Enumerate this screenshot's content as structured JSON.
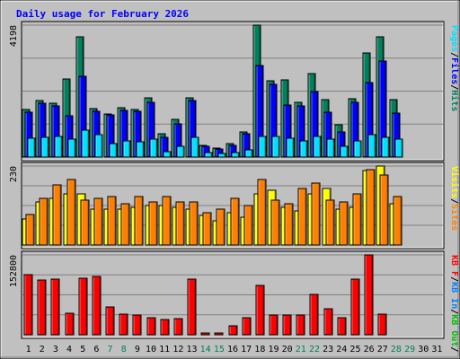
{
  "chart_data": {
    "type": "bar",
    "title": "Daily usage for February 2026",
    "days": [
      "1",
      "2",
      "3",
      "4",
      "5",
      "6",
      "7",
      "8",
      "9",
      "10",
      "11",
      "12",
      "13",
      "14",
      "15",
      "16",
      "17",
      "18",
      "19",
      "20",
      "21",
      "22",
      "23",
      "24",
      "25",
      "26",
      "27",
      "28",
      "29",
      "30",
      "31"
    ],
    "weekend_days": [
      "7",
      "8",
      "14",
      "15",
      "21",
      "22",
      "28",
      "29"
    ],
    "colors": {
      "background": "#c0c0c0",
      "title": "#0000ff",
      "hits": "#00805c",
      "files": "#0000ff",
      "pages": "#00e0ff",
      "visits": "#ffff00",
      "sites": "#ff8000",
      "kb_in": "#0080ff",
      "kb_out": "#00c000",
      "kb_f": "#ff0000",
      "weekday_label": "#000000",
      "weekend_label": "#00805c"
    },
    "panels": [
      {
        "id": "hits_files_pages",
        "ymax": 4198,
        "tick_label": "4198",
        "right_label": [
          {
            "text": "Pages",
            "color": "#00e0ff"
          },
          {
            "text": "/",
            "color": "#000000"
          },
          {
            "text": "Files",
            "color": "#0000ff"
          },
          {
            "text": "/",
            "color": "#000000"
          },
          {
            "text": "Hits",
            "color": "#00805c"
          }
        ],
        "series": [
          {
            "name": "Hits",
            "values": [
              1520,
              1800,
              1720,
              2490,
              3820,
              1550,
              1380,
              1580,
              1500,
              1890,
              750,
              1200,
              1880,
              380,
              280,
              420,
              800,
              4198,
              2420,
              2460,
              1750,
              2650,
              1830,
              1020,
              1860,
              3300,
              3830,
              1830,
              0,
              0,
              0
            ]
          },
          {
            "name": "Files",
            "values": [
              1420,
              1700,
              1640,
              1300,
              2560,
              1450,
              1350,
              1480,
              1450,
              1740,
              630,
              1060,
              1800,
              330,
              250,
              370,
              740,
              2920,
              2310,
              1650,
              1630,
              2080,
              1430,
              800,
              1730,
              2360,
              3050,
              1410,
              0,
              0,
              0
            ]
          },
          {
            "name": "Pages",
            "values": [
              600,
              620,
              650,
              560,
              870,
              700,
              420,
              520,
              480,
              560,
              170,
              340,
              640,
              150,
              100,
              150,
              230,
              660,
              650,
              610,
              500,
              660,
              570,
              350,
              520,
              700,
              640,
              580,
              0,
              0,
              0
            ]
          }
        ]
      },
      {
        "id": "visits_sites",
        "ymax": 230,
        "tick_label": "230",
        "right_label": [
          {
            "text": "Visits",
            "color": "#ffff00"
          },
          {
            "text": "/",
            "color": "#000000"
          },
          {
            "text": "Sites",
            "color": "#ff8000"
          }
        ],
        "series": [
          {
            "name": "Visits",
            "values": [
              75,
              125,
              135,
              150,
              150,
              105,
              105,
              105,
              110,
              115,
              115,
              110,
              105,
              85,
              70,
              95,
              80,
              150,
              160,
              110,
              100,
              150,
              165,
              105,
              110,
              216,
              230,
              120,
              0,
              0,
              0
            ]
          },
          {
            "name": "Sites",
            "values": [
              90,
              136,
              175,
              190,
              130,
              135,
              140,
              120,
              140,
              125,
              140,
              125,
              125,
              95,
              105,
              135,
              115,
              190,
              130,
              120,
              165,
              180,
              130,
              125,
              150,
              220,
              205,
              142,
              0,
              0,
              0
            ]
          }
        ]
      },
      {
        "id": "kbytes",
        "ymax": 152800,
        "tick_label": "152800",
        "right_label": [
          {
            "text": "KB F",
            "color": "#ff0000"
          },
          {
            "text": "/",
            "color": "#000000"
          },
          {
            "text": "KB In",
            "color": "#0080ff"
          },
          {
            "text": "/",
            "color": "#000000"
          },
          {
            "text": "KB Out",
            "color": "#00c000"
          },
          {
            "text": "/",
            "color": "#000000"
          }
        ],
        "series": [
          {
            "name": "KB F",
            "values": [
              115000,
              104000,
              106000,
              42000,
              108000,
              112000,
              53000,
              39000,
              38000,
              33000,
              30000,
              31000,
              106000,
              4000,
              4000,
              17000,
              33000,
              95000,
              38000,
              38000,
              38000,
              78000,
              50000,
              33000,
              106000,
              152800,
              40000,
              0,
              0,
              0,
              0
            ]
          }
        ]
      }
    ]
  }
}
